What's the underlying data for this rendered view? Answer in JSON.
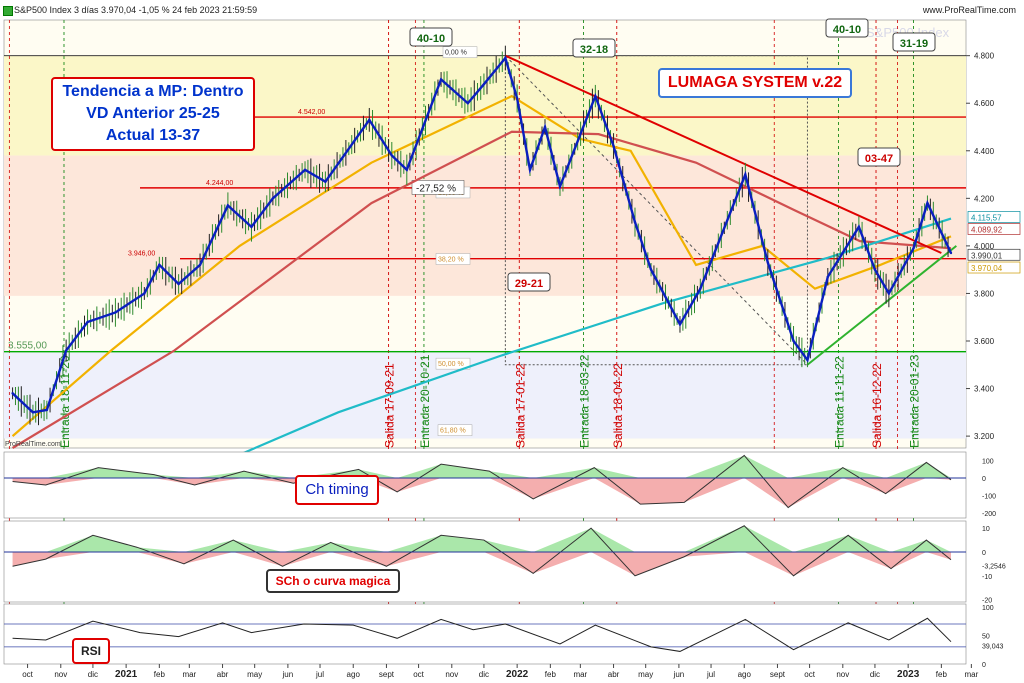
{
  "header": {
    "title": "S&P500 Index 3 días 3.970,04 -1,05 % 24 feb 2023 21:59:59",
    "brand": "www.ProRealTime.com",
    "watermark": "S&P500 Index",
    "source": "ProRealTime.com"
  },
  "annotations": {
    "trend_box": [
      "Tendencia a MP: Dentro",
      "VD Anterior 25-25",
      "Actual 13-37"
    ],
    "system_label": "LUMAGA SYSTEM v.22",
    "ch_timing": "Ch timing",
    "sch_label": "SCh o curva magica",
    "rsi_label": "RSI",
    "signal_tags": [
      {
        "text": "40-10",
        "color": "#116611"
      },
      {
        "text": "32-18",
        "color": "#116611"
      },
      {
        "text": "40-10",
        "color": "#116611"
      },
      {
        "text": "31-19",
        "color": "#116611"
      },
      {
        "text": "03-47",
        "color": "#cc0000"
      },
      {
        "text": "29-21",
        "color": "#cc0000"
      }
    ],
    "level_labels": [
      "4.542,00",
      "4.244,00",
      "3.946,00",
      "3.555,00"
    ],
    "fib_labels": [
      "0,00 %",
      "23,60 %",
      "38,20 %",
      "50,00 %",
      "61,80 %"
    ],
    "drawdown": "-27,52 %",
    "events": [
      "Entrada 18-11-20",
      "Salida 17-09-21",
      "Entrada 20-10-21",
      "Salida 17-01-22",
      "Entrada 18-03-22",
      "Salida 18-04-22",
      "Entrada 11-11-22",
      "Salida 16-12-22",
      "Entrada 20-01-23"
    ]
  },
  "axes": {
    "price_ticks": [
      "4.800",
      "4.600",
      "4.400",
      "4.200",
      "4.000",
      "3.800",
      "3.600",
      "3.400",
      "3.200"
    ],
    "price_flags": [
      {
        "text": "4.115,57",
        "color": "#0a8fa0"
      },
      {
        "text": "4.089,92",
        "color": "#b03030"
      },
      {
        "text": "3.990,01",
        "color": "#333333"
      },
      {
        "text": "3.970,04",
        "color": "#cc9900"
      }
    ],
    "ch_ticks": [
      "100",
      "0",
      "-100",
      "-200"
    ],
    "ch_flag": "",
    "sch_ticks": [
      "10",
      "0",
      "-3,2546",
      "-10",
      "-20"
    ],
    "rsi_ticks": [
      "100",
      "50",
      "39,043",
      "0"
    ],
    "months": [
      {
        "label": "oct",
        "bold": false
      },
      {
        "label": "nov",
        "bold": false
      },
      {
        "label": "dic",
        "bold": false
      },
      {
        "label": "2021",
        "bold": true
      },
      {
        "label": "feb",
        "bold": false
      },
      {
        "label": "mar",
        "bold": false
      },
      {
        "label": "abr",
        "bold": false
      },
      {
        "label": "may",
        "bold": false
      },
      {
        "label": "jun",
        "bold": false
      },
      {
        "label": "jul",
        "bold": false
      },
      {
        "label": "ago",
        "bold": false
      },
      {
        "label": "sept",
        "bold": false
      },
      {
        "label": "oct",
        "bold": false
      },
      {
        "label": "nov",
        "bold": false
      },
      {
        "label": "dic",
        "bold": false
      },
      {
        "label": "2022",
        "bold": true
      },
      {
        "label": "feb",
        "bold": false
      },
      {
        "label": "mar",
        "bold": false
      },
      {
        "label": "abr",
        "bold": false
      },
      {
        "label": "may",
        "bold": false
      },
      {
        "label": "jun",
        "bold": false
      },
      {
        "label": "jul",
        "bold": false
      },
      {
        "label": "ago",
        "bold": false
      },
      {
        "label": "sept",
        "bold": false
      },
      {
        "label": "oct",
        "bold": false
      },
      {
        "label": "nov",
        "bold": false
      },
      {
        "label": "dic",
        "bold": false
      },
      {
        "label": "2023",
        "bold": true
      },
      {
        "label": "feb",
        "bold": false
      },
      {
        "label": "mar",
        "bold": false
      }
    ]
  },
  "colors": {
    "price": "#0a1fbf",
    "ma_fast": "#f2b200",
    "ma_mid": "#d05050",
    "ma_slow": "#20bcc8",
    "resistance": "#e00000",
    "support": "#00aa00",
    "bull_fill": "#9be39b",
    "bear_fill": "#f2a0a0",
    "entry_line": "#1a8a1a",
    "exit_line": "#d00000"
  },
  "chart_data": {
    "type": "line",
    "price_series": {
      "name": "S&P500",
      "points": [
        [
          "2020-10-01",
          3380
        ],
        [
          "2020-10-20",
          3300
        ],
        [
          "2020-11-02",
          3310
        ],
        [
          "2020-11-20",
          3560
        ],
        [
          "2020-12-10",
          3680
        ],
        [
          "2021-01-05",
          3720
        ],
        [
          "2021-02-01",
          3800
        ],
        [
          "2021-02-15",
          3920
        ],
        [
          "2021-03-05",
          3840
        ],
        [
          "2021-03-25",
          3920
        ],
        [
          "2021-04-20",
          4170
        ],
        [
          "2021-05-12",
          4080
        ],
        [
          "2021-06-01",
          4200
        ],
        [
          "2021-07-01",
          4320
        ],
        [
          "2021-07-20",
          4270
        ],
        [
          "2021-08-30",
          4530
        ],
        [
          "2021-09-20",
          4380
        ],
        [
          "2021-10-04",
          4320
        ],
        [
          "2021-11-05",
          4700
        ],
        [
          "2021-11-30",
          4600
        ],
        [
          "2021-12-15",
          4680
        ],
        [
          "2022-01-04",
          4790
        ],
        [
          "2022-01-15",
          4620
        ],
        [
          "2022-01-27",
          4320
        ],
        [
          "2022-02-10",
          4500
        ],
        [
          "2022-02-24",
          4250
        ],
        [
          "2022-03-29",
          4630
        ],
        [
          "2022-04-15",
          4420
        ],
        [
          "2022-05-05",
          4100
        ],
        [
          "2022-05-20",
          3900
        ],
        [
          "2022-06-16",
          3670
        ],
        [
          "2022-07-05",
          3820
        ],
        [
          "2022-08-16",
          4300
        ],
        [
          "2022-09-06",
          3930
        ],
        [
          "2022-09-30",
          3600
        ],
        [
          "2022-10-13",
          3520
        ],
        [
          "2022-11-01",
          3870
        ],
        [
          "2022-11-30",
          4080
        ],
        [
          "2022-12-15",
          3900
        ],
        [
          "2022-12-28",
          3800
        ],
        [
          "2023-01-20",
          3990
        ],
        [
          "2023-02-02",
          4180
        ],
        [
          "2023-02-24",
          3970
        ]
      ]
    },
    "moving_averages": [
      {
        "name": "",
        "points": [
          [
            "2020-10-01",
            3200
          ],
          [
            "2021-01-01",
            3560
          ],
          [
            "2021-05-01",
            4000
          ],
          [
            "2021-09-01",
            4350
          ],
          [
            "2022-01-10",
            4630
          ],
          [
            "2022-03-15",
            4450
          ],
          [
            "2022-05-01",
            4400
          ],
          [
            "2022-07-01",
            3920
          ],
          [
            "2022-09-01",
            4000
          ],
          [
            "2022-10-20",
            3820
          ],
          [
            "2022-12-20",
            3920
          ],
          [
            "2023-02-24",
            4040
          ]
        ]
      },
      {
        "name": "",
        "points": [
          [
            "2020-10-01",
            3150
          ],
          [
            "2021-03-01",
            3560
          ],
          [
            "2021-09-01",
            4180
          ],
          [
            "2022-01-10",
            4480
          ],
          [
            "2022-04-01",
            4470
          ],
          [
            "2022-07-01",
            4350
          ],
          [
            "2022-10-01",
            4150
          ],
          [
            "2022-12-01",
            4020
          ],
          [
            "2023-02-24",
            3990
          ]
        ]
      },
      {
        "name": "",
        "points": [
          [
            "2021-02-01",
            2950
          ],
          [
            "2021-08-01",
            3300
          ],
          [
            "2022-01-01",
            3540
          ],
          [
            "2022-06-01",
            3760
          ],
          [
            "2022-11-01",
            3950
          ],
          [
            "2023-02-24",
            4115
          ]
        ]
      }
    ],
    "horizontal_levels": [
      4542,
      4244,
      3946,
      3555
    ],
    "trendlines": [
      {
        "name": "",
        "from": [
          "2022-01-04",
          4800
        ],
        "to": [
          "2023-02-15",
          3970
        ]
      },
      {
        "name": "",
        "from": [
          "2022-10-13",
          3500
        ],
        "to": [
          "2023-03-01",
          4000
        ]
      }
    ],
    "ylim": [
      3150,
      4950
    ],
    "xlim": [
      "2020-09-23",
      "2023-03-10"
    ],
    "ch_timing": {
      "x": [
        "2020-10-01",
        "2020-11-01",
        "2020-12-20",
        "2021-02-10",
        "2021-03-20",
        "2021-05-05",
        "2021-06-20",
        "2021-08-20",
        "2021-09-25",
        "2021-11-05",
        "2021-12-20",
        "2022-01-30",
        "2022-03-28",
        "2022-05-10",
        "2022-06-20",
        "2022-08-15",
        "2022-09-25",
        "2022-11-15",
        "2022-12-25",
        "2023-02-01",
        "2023-02-24"
      ],
      "values": [
        -20,
        -40,
        60,
        20,
        -40,
        40,
        -30,
        50,
        -80,
        80,
        40,
        -120,
        60,
        -150,
        -140,
        130,
        -170,
        60,
        -90,
        90,
        -10
      ],
      "ylim": [
        -230,
        150
      ]
    },
    "sch": {
      "x": [
        "2020-10-01",
        "2020-11-01",
        "2020-12-15",
        "2021-01-25",
        "2021-03-10",
        "2021-04-25",
        "2021-06-10",
        "2021-07-25",
        "2021-09-15",
        "2021-11-05",
        "2021-12-15",
        "2022-01-30",
        "2022-03-25",
        "2022-05-05",
        "2022-06-20",
        "2022-08-15",
        "2022-09-30",
        "2022-11-20",
        "2022-12-30",
        "2023-02-01",
        "2023-02-24"
      ],
      "values": [
        -6,
        -3,
        7,
        2,
        -5,
        5,
        -6,
        4,
        -6,
        7,
        5,
        -9,
        10,
        -10,
        -2,
        11,
        -10,
        7,
        -7,
        5,
        -3.2546
      ],
      "ylim": [
        -21,
        13
      ]
    },
    "rsi": {
      "x": [
        "2020-10-01",
        "2020-11-01",
        "2020-12-15",
        "2021-01-28",
        "2021-03-05",
        "2021-04-15",
        "2021-05-12",
        "2021-06-30",
        "2021-08-15",
        "2021-09-25",
        "2021-11-05",
        "2021-12-05",
        "2022-01-04",
        "2022-02-24",
        "2022-03-29",
        "2022-05-20",
        "2022-06-16",
        "2022-08-16",
        "2022-09-30",
        "2022-11-20",
        "2022-12-28",
        "2023-02-02",
        "2023-02-24"
      ],
      "values": [
        45,
        42,
        75,
        55,
        48,
        72,
        55,
        70,
        68,
        45,
        78,
        60,
        70,
        35,
        68,
        30,
        22,
        78,
        25,
        72,
        42,
        80,
        39.043
      ],
      "ylim": [
        0,
        105
      ]
    }
  }
}
